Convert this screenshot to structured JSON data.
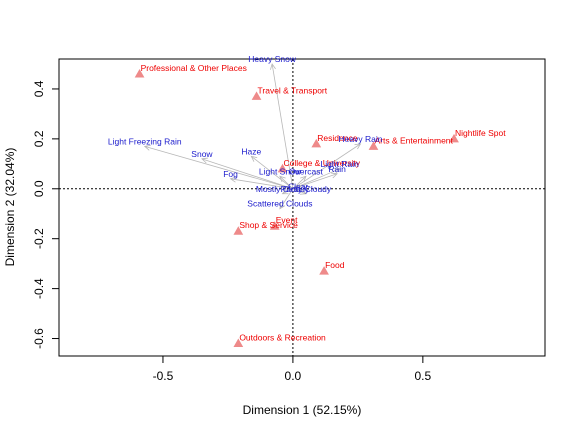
{
  "chart_data": {
    "type": "scatter",
    "title": "",
    "xlabel": "Dimension 1 (52.15%)",
    "ylabel": "Dimension 2 (32.04%)",
    "xlim": [
      -0.9,
      0.97
    ],
    "ylim": [
      -0.67,
      0.52
    ],
    "xticks": [
      -0.5,
      0.0,
      0.5
    ],
    "yticks": [
      -0.6,
      -0.4,
      -0.2,
      0.0,
      0.2,
      0.4
    ],
    "reference_lines": {
      "x": 0,
      "y": 0,
      "style": "dotted"
    },
    "grid": false,
    "colors": {
      "venue_label": "#ee0000",
      "venue_marker": "#ee8a8a",
      "weather_label": "#1a1acc",
      "weather_arrow": "#b8b8b8"
    },
    "series": [
      {
        "group": "venue-categories",
        "marker": "triangle",
        "points": [
          {
            "label": "Professional & Other Places",
            "x": -0.59,
            "y": 0.46
          },
          {
            "label": "Travel & Transport",
            "x": -0.14,
            "y": 0.37
          },
          {
            "label": "Residence",
            "x": 0.09,
            "y": 0.18
          },
          {
            "label": "Arts & Entertainment",
            "x": 0.31,
            "y": 0.17
          },
          {
            "label": "Nightlife Spot",
            "x": 0.62,
            "y": 0.2
          },
          {
            "label": "College & University",
            "x": -0.04,
            "y": 0.08
          },
          {
            "label": "Event",
            "x": -0.07,
            "y": -0.15
          },
          {
            "label": "Shop & Service",
            "x": -0.21,
            "y": -0.17
          },
          {
            "label": "Food",
            "x": 0.12,
            "y": -0.33
          },
          {
            "label": "Outdoors & Recreation",
            "x": -0.21,
            "y": -0.62
          }
        ]
      },
      {
        "group": "weather-conditions",
        "marker": "arrow",
        "points": [
          {
            "label": "Heavy Snow",
            "x": -0.08,
            "y": 0.5
          },
          {
            "label": "Light Freezing Rain",
            "x": -0.57,
            "y": 0.17
          },
          {
            "label": "Snow",
            "x": -0.35,
            "y": 0.12
          },
          {
            "label": "Haze",
            "x": -0.16,
            "y": 0.13
          },
          {
            "label": "Fog",
            "x": -0.24,
            "y": 0.04
          },
          {
            "label": "Heavy Rain",
            "x": 0.26,
            "y": 0.18
          },
          {
            "label": "Light Rain",
            "x": 0.18,
            "y": 0.08
          },
          {
            "label": "Rain",
            "x": 0.17,
            "y": 0.06
          },
          {
            "label": "Light Snow",
            "x": -0.05,
            "y": 0.05
          },
          {
            "label": "Overcast",
            "x": 0.05,
            "y": 0.05
          },
          {
            "label": "Clear",
            "x": 0.02,
            "y": -0.01
          },
          {
            "label": "Mostly Cloudy",
            "x": -0.04,
            "y": -0.02
          },
          {
            "label": "Partly Cloudy",
            "x": 0.05,
            "y": -0.02
          },
          {
            "label": "Scattered Clouds",
            "x": -0.05,
            "y": -0.08
          }
        ]
      }
    ]
  }
}
